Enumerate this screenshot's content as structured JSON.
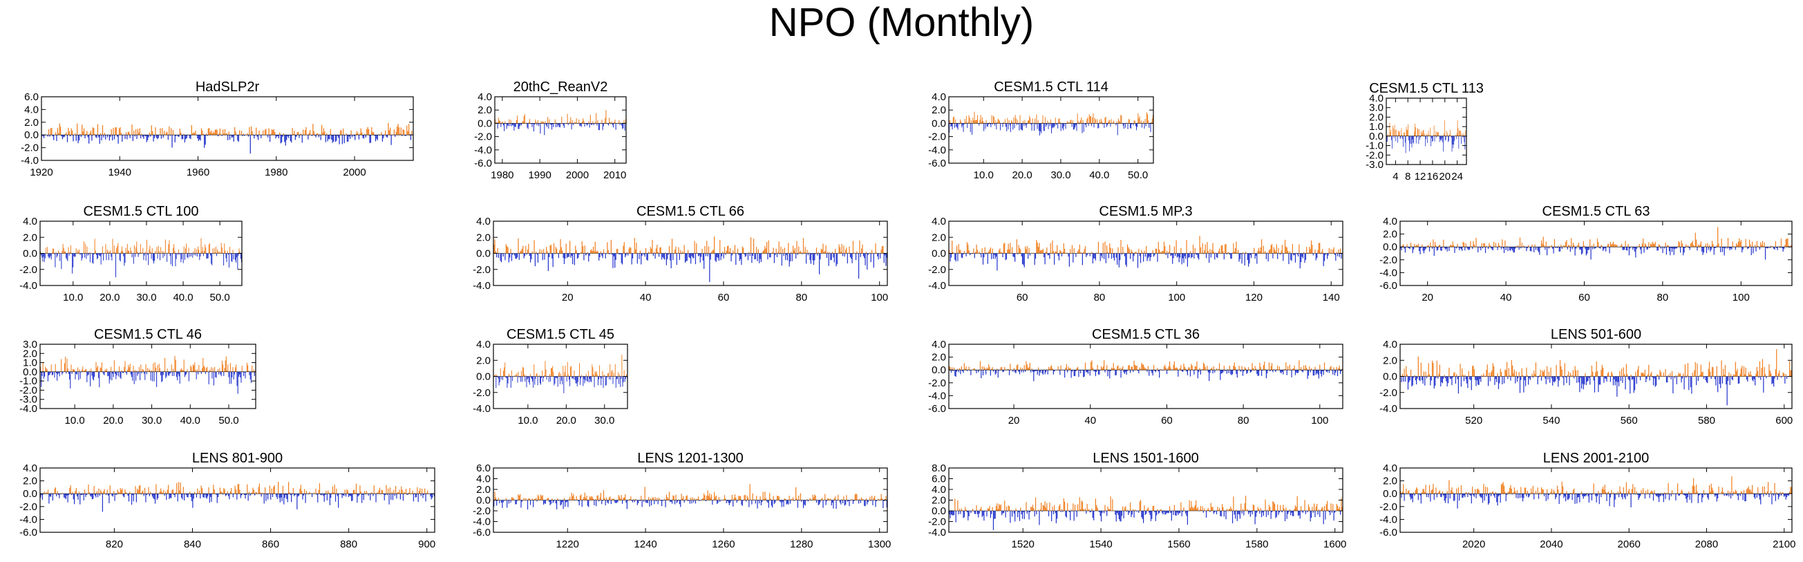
{
  "figure": {
    "title": "NPO (Monthly)"
  },
  "colors": {
    "positive": "#f07f1f",
    "negative": "#2233cc",
    "frame": "#000000"
  },
  "chart_data": [
    {
      "type": "bar",
      "title": "HadSLP2r",
      "x_range": [
        1920,
        2015
      ],
      "xticks": [
        1920,
        1940,
        1960,
        1980,
        2000
      ],
      "xtick_labels": [
        "1920",
        "1940",
        "1960",
        "1980",
        "2000"
      ],
      "yticks": [
        6,
        4,
        2,
        0,
        -2,
        -4
      ],
      "ytick_labels": [
        "6.0",
        "4.0",
        "2.0",
        "0.0",
        "-2.0",
        "-4.0"
      ],
      "ylim": [
        -4,
        6
      ],
      "amp": 2.0,
      "n": 380
    },
    {
      "type": "bar",
      "title": "20thC_ReanV2",
      "x_range": [
        1978,
        2013
      ],
      "xticks": [
        1980,
        1990,
        2000,
        2010
      ],
      "xtick_labels": [
        "1980",
        "1990",
        "2000",
        "2010"
      ],
      "yticks": [
        4,
        2,
        0,
        -2,
        -4,
        -6
      ],
      "ytick_labels": [
        "4.0",
        "2.0",
        "0.0",
        "-2.0",
        "-4.0",
        "-6.0"
      ],
      "ylim": [
        -6,
        4
      ],
      "amp": 1.8,
      "n": 160
    },
    {
      "type": "bar",
      "title": "CESM1.5 CTL 114",
      "x_range": [
        1,
        54
      ],
      "xticks": [
        10,
        20,
        30,
        40,
        50
      ],
      "xtick_labels": [
        "10.0",
        "20.0",
        "30.0",
        "40.0",
        "50.0"
      ],
      "yticks": [
        4,
        2,
        0,
        -2,
        -4,
        -6
      ],
      "ytick_labels": [
        "4.0",
        "2.0",
        "0.0",
        "-2.0",
        "-4.0",
        "-6.0"
      ],
      "ylim": [
        -6,
        4
      ],
      "amp": 2.0,
      "n": 260
    },
    {
      "type": "bar",
      "title": "CESM1.5 CTL 113",
      "x_range": [
        1,
        27
      ],
      "xticks": [
        4,
        8,
        12,
        16,
        20,
        24
      ],
      "xtick_labels": [
        "4",
        "8",
        "12",
        "16",
        "20",
        "24"
      ],
      "yticks": [
        4,
        3,
        2,
        1,
        0,
        -1,
        -2,
        -3
      ],
      "ytick_labels": [
        "4.0",
        "3.0",
        "2.0",
        "1.0",
        "0.0",
        "-1.0",
        "-2.0",
        "-3.0"
      ],
      "ylim": [
        -3,
        4
      ],
      "amp": 2.0,
      "n": 130
    },
    {
      "type": "bar",
      "title": "CESM1.5 CTL 100",
      "x_range": [
        1,
        56
      ],
      "xticks": [
        10,
        20,
        30,
        40,
        50
      ],
      "xtick_labels": [
        "10.0",
        "20.0",
        "30.0",
        "40.0",
        "50.0"
      ],
      "yticks": [
        4,
        2,
        0,
        -2,
        -4
      ],
      "ytick_labels": [
        "4.0",
        "2.0",
        "0.0",
        "-2.0",
        "-4.0"
      ],
      "ylim": [
        -4,
        4
      ],
      "amp": 2.2,
      "n": 260
    },
    {
      "type": "bar",
      "title": "CESM1.5 CTL 66",
      "x_range": [
        1,
        102
      ],
      "xticks": [
        20,
        40,
        60,
        80,
        100
      ],
      "xtick_labels": [
        "20",
        "40",
        "60",
        "80",
        "100"
      ],
      "yticks": [
        4,
        2,
        0,
        -2,
        -4
      ],
      "ytick_labels": [
        "4.0",
        "2.0",
        "0.0",
        "-2.0",
        "-4.0"
      ],
      "ylim": [
        -4,
        4
      ],
      "amp": 2.2,
      "n": 420
    },
    {
      "type": "bar",
      "title": "CESM1.5 MP.3",
      "x_range": [
        41,
        143
      ],
      "xticks": [
        60,
        80,
        100,
        120,
        140
      ],
      "xtick_labels": [
        "60",
        "80",
        "100",
        "120",
        "140"
      ],
      "yticks": [
        4,
        2,
        0,
        -2,
        -4
      ],
      "ytick_labels": [
        "4.0",
        "2.0",
        "0.0",
        "-2.0",
        "-4.0"
      ],
      "ylim": [
        -4,
        4
      ],
      "amp": 2.2,
      "n": 420
    },
    {
      "type": "bar",
      "title": "CESM1.5 CTL 63",
      "x_range": [
        13,
        113
      ],
      "xticks": [
        20,
        40,
        60,
        80,
        100
      ],
      "xtick_labels": [
        "20",
        "40",
        "60",
        "80",
        "100"
      ],
      "yticks": [
        4,
        2,
        0,
        -2,
        -4,
        -6
      ],
      "ytick_labels": [
        "4.0",
        "2.0",
        "0.0",
        "-2.0",
        "-4.0",
        "-6.0"
      ],
      "ylim": [
        -6,
        4
      ],
      "amp": 1.8,
      "n": 420
    },
    {
      "type": "bar",
      "title": "CESM1.5 CTL 46",
      "x_range": [
        1,
        57
      ],
      "xticks": [
        10,
        20,
        30,
        40,
        50
      ],
      "xtick_labels": [
        "10.0",
        "20.0",
        "30.0",
        "40.0",
        "50.0"
      ],
      "yticks": [
        3,
        2,
        1,
        0,
        -1,
        -2,
        -3,
        -4
      ],
      "ytick_labels": [
        "3.0",
        "2.0",
        "1.0",
        "0.0",
        "-1.0",
        "-2.0",
        "-3.0",
        "-4.0"
      ],
      "ylim": [
        -4,
        3
      ],
      "amp": 2.0,
      "n": 260
    },
    {
      "type": "bar",
      "title": "CESM1.5 CTL 45",
      "x_range": [
        1,
        36
      ],
      "xticks": [
        10,
        20,
        30
      ],
      "xtick_labels": [
        "10.0",
        "20.0",
        "30.0"
      ],
      "yticks": [
        4,
        2,
        0,
        -2,
        -4
      ],
      "ytick_labels": [
        "4.0",
        "2.0",
        "0.0",
        "-2.0",
        "-4.0"
      ],
      "ylim": [
        -4,
        4
      ],
      "amp": 2.0,
      "n": 180
    },
    {
      "type": "bar",
      "title": "CESM1.5 CTL 36",
      "x_range": [
        3,
        106
      ],
      "xticks": [
        20,
        40,
        60,
        80,
        100
      ],
      "xtick_labels": [
        "20",
        "40",
        "60",
        "80",
        "100"
      ],
      "yticks": [
        4,
        2,
        0,
        -2,
        -4,
        -6
      ],
      "ytick_labels": [
        "4.0",
        "2.0",
        "0.0",
        "-2.0",
        "-4.0",
        "-6.0"
      ],
      "ylim": [
        -6,
        4
      ],
      "amp": 1.8,
      "n": 420
    },
    {
      "type": "bar",
      "title": "LENS 501-600",
      "x_range": [
        501,
        602
      ],
      "xticks": [
        520,
        540,
        560,
        580,
        600
      ],
      "xtick_labels": [
        "520",
        "540",
        "560",
        "580",
        "600"
      ],
      "yticks": [
        4,
        2,
        0,
        -2,
        -4
      ],
      "ytick_labels": [
        "4.0",
        "2.0",
        "0.0",
        "-2.0",
        "-4.0"
      ],
      "ylim": [
        -4,
        4
      ],
      "amp": 2.5,
      "n": 420
    },
    {
      "type": "bar",
      "title": "LENS 801-900",
      "x_range": [
        801,
        902
      ],
      "xticks": [
        820,
        840,
        860,
        880,
        900
      ],
      "xtick_labels": [
        "820",
        "840",
        "860",
        "880",
        "900"
      ],
      "yticks": [
        4,
        2,
        0,
        -2,
        -4,
        -6
      ],
      "ytick_labels": [
        "4.0",
        "2.0",
        "0.0",
        "-2.0",
        "-4.0",
        "-6.0"
      ],
      "ylim": [
        -6,
        4
      ],
      "amp": 2.2,
      "n": 420
    },
    {
      "type": "bar",
      "title": "LENS 1201-1300",
      "x_range": [
        1201,
        1302
      ],
      "xticks": [
        1220,
        1240,
        1260,
        1280,
        1300
      ],
      "xtick_labels": [
        "1220",
        "1240",
        "1260",
        "1280",
        "1300"
      ],
      "yticks": [
        6,
        4,
        2,
        0,
        -2,
        -4,
        -6
      ],
      "ytick_labels": [
        "6.0",
        "4.0",
        "2.0",
        "0.0",
        "-2.0",
        "-4.0",
        "-6.0"
      ],
      "ylim": [
        -6,
        6
      ],
      "amp": 2.0,
      "n": 420
    },
    {
      "type": "bar",
      "title": "LENS 1501-1600",
      "x_range": [
        1501,
        1602
      ],
      "xticks": [
        1520,
        1540,
        1560,
        1580,
        1600
      ],
      "xtick_labels": [
        "1520",
        "1540",
        "1560",
        "1580",
        "1600"
      ],
      "yticks": [
        8,
        6,
        4,
        2,
        0,
        -2,
        -4
      ],
      "ytick_labels": [
        "8.0",
        "6.0",
        "4.0",
        "2.0",
        "0.0",
        "-2.0",
        "-4.0"
      ],
      "ylim": [
        -4,
        8
      ],
      "amp": 3.0,
      "n": 420
    },
    {
      "type": "bar",
      "title": "LENS 2001-2100",
      "x_range": [
        2001,
        2102
      ],
      "xticks": [
        2020,
        2040,
        2060,
        2080,
        2100
      ],
      "xtick_labels": [
        "2020",
        "2040",
        "2060",
        "2080",
        "2100"
      ],
      "yticks": [
        4,
        2,
        0,
        -2,
        -4,
        -6
      ],
      "ytick_labels": [
        "4.0",
        "2.0",
        "0.0",
        "-2.0",
        "-4.0",
        "-6.0"
      ],
      "ylim": [
        -6,
        4
      ],
      "amp": 2.2,
      "n": 420
    }
  ]
}
